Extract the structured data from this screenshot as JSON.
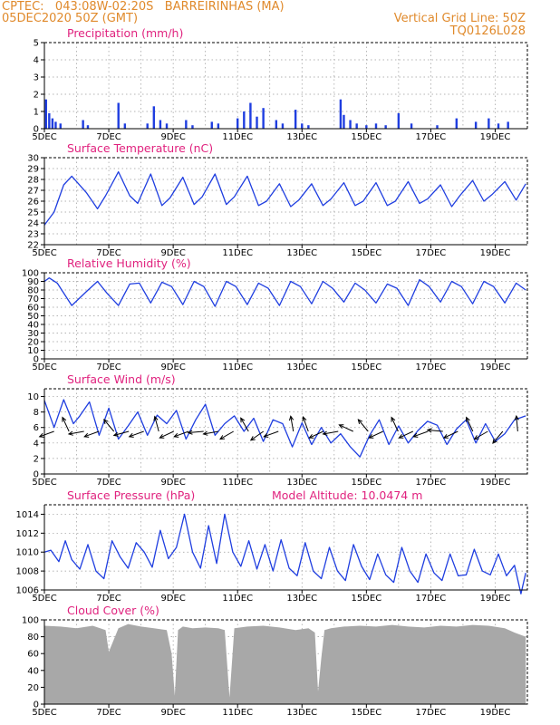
{
  "header": {
    "line1_left": "CPTEC:   043:08W-02:20S   BARREIRINHAS (MA)",
    "line2_left": "05DEC2020 50Z (GMT)",
    "line2_right": "Vertical Grid Line: 50Z",
    "line3_right": "TQ0126L028"
  },
  "colors": {
    "header": "#e08a2c",
    "panel_title": "#e0227e",
    "series": "#1f3ee0",
    "cloud": "#a8a8a8",
    "wind_arrow": "#000000"
  },
  "chart_data": [
    {
      "type": "bar",
      "title": "Precipitation (mm/h)",
      "xlabel": "",
      "ylabel": "",
      "x_tick_labels": [
        "5DEC",
        "7DEC",
        "9DEC",
        "11DEC",
        "13DEC",
        "15DEC",
        "17DEC",
        "19DEC"
      ],
      "x_range_days": [
        5,
        20
      ],
      "ylim": [
        0,
        5
      ],
      "y_ticks": [
        0,
        1,
        2,
        3,
        4,
        5
      ],
      "grid": true,
      "series": [
        {
          "x": [
            5.05,
            5.15,
            5.25,
            5.35,
            5.5,
            6.2,
            6.35,
            7.3,
            7.5,
            8.2,
            8.4,
            8.6,
            8.8,
            9.4,
            9.6,
            10.2,
            10.4,
            11.0,
            11.2,
            11.4,
            11.6,
            11.8,
            12.2,
            12.4,
            12.8,
            13.0,
            13.2,
            14.2,
            14.3,
            14.5,
            14.7,
            15.0,
            15.3,
            15.6,
            16.0,
            16.4,
            17.2,
            17.8,
            18.4,
            18.8,
            19.1,
            19.4
          ],
          "values": [
            1.7,
            0.9,
            0.6,
            0.4,
            0.3,
            0.5,
            0.2,
            1.5,
            0.3,
            0.3,
            1.3,
            0.5,
            0.3,
            0.5,
            0.2,
            0.4,
            0.3,
            0.6,
            1.0,
            1.5,
            0.7,
            1.2,
            0.5,
            0.3,
            1.1,
            0.3,
            0.2,
            1.7,
            0.8,
            0.5,
            0.3,
            0.2,
            0.3,
            0.2,
            0.9,
            0.3,
            0.2,
            0.6,
            0.4,
            0.6,
            0.3,
            0.4
          ]
        }
      ]
    },
    {
      "type": "line",
      "title": "Surface Temperature (nC)",
      "xlabel": "",
      "ylabel": "",
      "x_tick_labels": [
        "5DEC",
        "7DEC",
        "9DEC",
        "11DEC",
        "13DEC",
        "15DEC",
        "17DEC",
        "19DEC"
      ],
      "x_range_days": [
        5,
        20
      ],
      "ylim": [
        22,
        30
      ],
      "y_ticks": [
        22,
        23,
        24,
        25,
        26,
        27,
        28,
        29,
        30
      ],
      "grid": true,
      "series": [
        {
          "x": [
            5.0,
            5.3,
            5.6,
            5.85,
            6.3,
            6.65,
            6.9,
            7.3,
            7.65,
            7.9,
            8.3,
            8.65,
            8.9,
            9.3,
            9.65,
            9.9,
            10.3,
            10.65,
            10.9,
            11.3,
            11.65,
            11.9,
            12.3,
            12.65,
            12.9,
            13.3,
            13.65,
            13.9,
            14.3,
            14.65,
            14.9,
            15.3,
            15.65,
            15.9,
            16.3,
            16.65,
            16.9,
            17.3,
            17.65,
            17.9,
            18.3,
            18.65,
            18.9,
            19.3,
            19.65,
            19.95
          ],
          "values": [
            23.8,
            25.0,
            27.5,
            28.3,
            26.8,
            25.3,
            26.5,
            28.7,
            26.5,
            25.8,
            28.5,
            25.6,
            26.3,
            28.2,
            25.7,
            26.4,
            28.5,
            25.7,
            26.4,
            28.3,
            25.6,
            26.0,
            27.6,
            25.5,
            26.1,
            27.6,
            25.6,
            26.2,
            27.7,
            25.6,
            26.0,
            27.7,
            25.6,
            26.0,
            27.8,
            25.8,
            26.2,
            27.5,
            25.5,
            26.5,
            27.9,
            26.0,
            26.6,
            27.8,
            26.1,
            27.6
          ]
        }
      ]
    },
    {
      "type": "line",
      "title": "Relative Humidity (%)",
      "xlabel": "",
      "ylabel": "",
      "x_tick_labels": [
        "5DEC",
        "7DEC",
        "9DEC",
        "11DEC",
        "13DEC",
        "15DEC",
        "17DEC",
        "19DEC"
      ],
      "x_range_days": [
        5,
        20
      ],
      "ylim": [
        0,
        100
      ],
      "y_ticks": [
        0,
        10,
        20,
        30,
        40,
        50,
        60,
        70,
        80,
        90,
        100
      ],
      "grid": true,
      "series": [
        {
          "x": [
            5.0,
            5.15,
            5.4,
            5.85,
            6.3,
            6.65,
            6.95,
            7.3,
            7.65,
            7.95,
            8.3,
            8.65,
            8.95,
            9.3,
            9.65,
            9.95,
            10.3,
            10.65,
            10.95,
            11.3,
            11.65,
            11.95,
            12.3,
            12.65,
            12.95,
            13.3,
            13.65,
            13.95,
            14.3,
            14.65,
            14.95,
            15.3,
            15.65,
            15.95,
            16.3,
            16.65,
            16.95,
            17.3,
            17.65,
            17.95,
            18.3,
            18.65,
            18.95,
            19.3,
            19.65,
            19.95
          ],
          "values": [
            90,
            94,
            88,
            62,
            78,
            90,
            76,
            62,
            87,
            88,
            65,
            89,
            84,
            63,
            90,
            84,
            61,
            90,
            84,
            63,
            88,
            82,
            62,
            90,
            84,
            64,
            90,
            82,
            66,
            88,
            80,
            65,
            87,
            82,
            62,
            92,
            84,
            66,
            90,
            84,
            64,
            90,
            84,
            65,
            88,
            80
          ]
        }
      ]
    },
    {
      "type": "line",
      "title": "Surface Wind (m/s)",
      "xlabel": "",
      "ylabel": "",
      "x_tick_labels": [
        "5DEC",
        "7DEC",
        "9DEC",
        "11DEC",
        "13DEC",
        "15DEC",
        "17DEC",
        "19DEC"
      ],
      "x_range_days": [
        5,
        20
      ],
      "ylim": [
        0,
        11
      ],
      "y_ticks": [
        0,
        2,
        4,
        6,
        8,
        10
      ],
      "grid": true,
      "series": [
        {
          "x": [
            5.0,
            5.3,
            5.6,
            5.9,
            6.1,
            6.4,
            6.7,
            7.0,
            7.3,
            7.6,
            7.9,
            8.2,
            8.5,
            8.8,
            9.1,
            9.4,
            9.7,
            10.0,
            10.3,
            10.6,
            10.9,
            11.2,
            11.5,
            11.8,
            12.1,
            12.4,
            12.7,
            13.0,
            13.3,
            13.6,
            13.9,
            14.2,
            14.5,
            14.8,
            15.1,
            15.4,
            15.7,
            16.0,
            16.3,
            16.6,
            16.9,
            17.2,
            17.5,
            17.8,
            18.1,
            18.4,
            18.7,
            19.0,
            19.3,
            19.6,
            19.95
          ],
          "values": [
            9.5,
            6.0,
            9.6,
            6.5,
            7.5,
            9.3,
            5.0,
            8.5,
            4.5,
            6.2,
            8.0,
            5.0,
            7.6,
            6.5,
            8.2,
            4.5,
            7.0,
            9.0,
            5.0,
            6.5,
            7.5,
            5.5,
            7.2,
            4.2,
            7.0,
            6.5,
            3.5,
            6.6,
            3.8,
            6.0,
            4.0,
            5.2,
            3.5,
            2.2,
            5.0,
            7.0,
            3.8,
            6.2,
            4.0,
            5.6,
            6.8,
            6.3,
            3.8,
            5.8,
            7.0,
            4.0,
            6.5,
            4.2,
            5.2,
            7.0,
            7.5
          ]
        }
      ],
      "wind_arrows_direction_deg": [
        200,
        115,
        190,
        200,
        130,
        195,
        200,
        105,
        205,
        200,
        185,
        190,
        210,
        120,
        215,
        200,
        100,
        110,
        205,
        190,
        155,
        130,
        205,
        115,
        205,
        200,
        175,
        205,
        115,
        210,
        230,
        95
      ]
    },
    {
      "type": "line",
      "title": "Surface Pressure (hPa)",
      "annotation": "Model Altitude: 10.0474 m",
      "xlabel": "",
      "ylabel": "",
      "x_tick_labels": [
        "5DEC",
        "7DEC",
        "9DEC",
        "11DEC",
        "13DEC",
        "15DEC",
        "17DEC",
        "19DEC"
      ],
      "x_range_days": [
        5,
        20
      ],
      "ylim": [
        1006,
        1015
      ],
      "y_ticks": [
        1006,
        1008,
        1010,
        1012,
        1014
      ],
      "grid": true,
      "series": [
        {
          "x": [
            5.0,
            5.2,
            5.45,
            5.65,
            5.85,
            6.1,
            6.35,
            6.6,
            6.85,
            7.1,
            7.35,
            7.6,
            7.85,
            8.1,
            8.35,
            8.6,
            8.85,
            9.1,
            9.35,
            9.6,
            9.85,
            10.1,
            10.35,
            10.6,
            10.85,
            11.1,
            11.35,
            11.6,
            11.85,
            12.1,
            12.35,
            12.6,
            12.85,
            13.1,
            13.35,
            13.6,
            13.85,
            14.1,
            14.35,
            14.6,
            14.85,
            15.1,
            15.35,
            15.6,
            15.85,
            16.1,
            16.35,
            16.6,
            16.85,
            17.1,
            17.35,
            17.6,
            17.85,
            18.1,
            18.35,
            18.6,
            18.85,
            19.1,
            19.35,
            19.6,
            19.8,
            19.95
          ],
          "values": [
            1010.0,
            1010.2,
            1009.0,
            1011.2,
            1009.2,
            1008.2,
            1010.8,
            1008.0,
            1007.2,
            1011.2,
            1009.5,
            1008.3,
            1011.0,
            1010.0,
            1008.4,
            1012.3,
            1009.3,
            1010.5,
            1014.0,
            1010.0,
            1008.3,
            1012.8,
            1008.8,
            1014.0,
            1010.0,
            1008.5,
            1011.2,
            1008.2,
            1010.8,
            1008.0,
            1011.3,
            1008.3,
            1007.5,
            1011.0,
            1008.0,
            1007.2,
            1010.5,
            1008.0,
            1007.0,
            1010.8,
            1008.5,
            1007.1,
            1009.8,
            1007.6,
            1006.8,
            1010.5,
            1008.0,
            1006.8,
            1009.8,
            1007.8,
            1007.0,
            1009.8,
            1007.5,
            1007.6,
            1010.3,
            1008.0,
            1007.6,
            1009.8,
            1007.5,
            1008.6,
            1005.6,
            1007.8
          ]
        }
      ]
    },
    {
      "type": "area",
      "title": "Cloud Cover (%)",
      "xlabel": "",
      "ylabel": "",
      "x_tick_labels": [
        "5DEC",
        "7DEC",
        "9DEC",
        "11DEC",
        "13DEC",
        "15DEC",
        "17DEC",
        "19DEC"
      ],
      "x_range_days": [
        5,
        20
      ],
      "ylim": [
        0,
        100
      ],
      "y_ticks": [
        0,
        20,
        40,
        60,
        80,
        100
      ],
      "grid": true,
      "series": [
        {
          "x": [
            5.0,
            5.5,
            6.0,
            6.5,
            6.9,
            7.0,
            7.3,
            7.6,
            8.0,
            8.4,
            8.8,
            8.95,
            9.05,
            9.15,
            9.3,
            9.6,
            10.0,
            10.4,
            10.6,
            10.75,
            10.9,
            11.3,
            11.8,
            12.3,
            12.8,
            13.2,
            13.4,
            13.5,
            13.6,
            13.7,
            13.9,
            14.3,
            14.8,
            15.3,
            15.8,
            16.3,
            16.8,
            17.3,
            17.8,
            18.3,
            18.8,
            19.3,
            19.6,
            19.95
          ],
          "values": [
            93,
            92,
            90,
            93,
            88,
            62,
            90,
            95,
            92,
            90,
            88,
            60,
            10,
            88,
            92,
            90,
            91,
            90,
            88,
            8,
            90,
            92,
            93,
            91,
            88,
            90,
            85,
            15,
            55,
            88,
            90,
            92,
            93,
            92,
            94,
            92,
            91,
            93,
            92,
            94,
            93,
            90,
            85,
            80
          ]
        }
      ]
    }
  ]
}
